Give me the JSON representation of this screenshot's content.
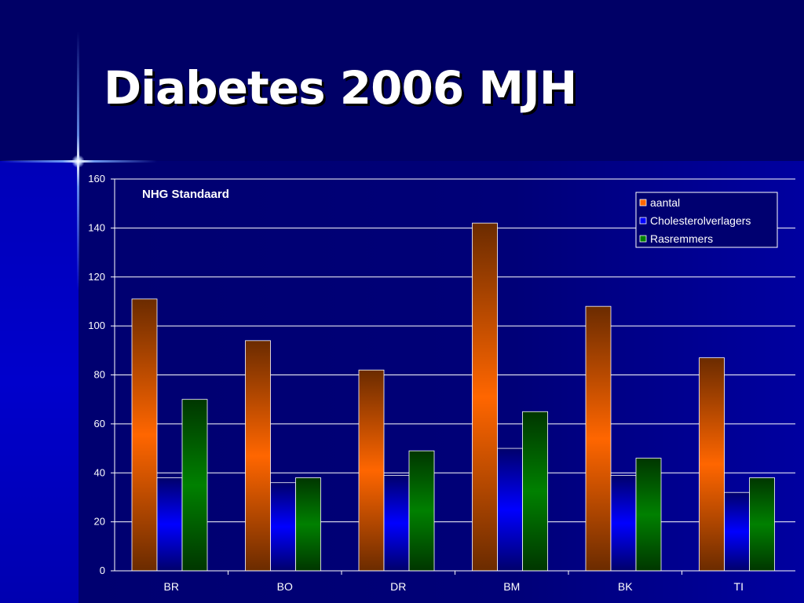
{
  "slide": {
    "title": "Diabetes 2006 MJH"
  },
  "chart_data": {
    "type": "bar",
    "title": "",
    "annotation": "NHG Standaard",
    "xlabel": "",
    "ylabel": "",
    "categories": [
      "BR",
      "BO",
      "DR",
      "BM",
      "BK",
      "TI"
    ],
    "series": [
      {
        "name": "aantal",
        "values": [
          111,
          94,
          82,
          142,
          108,
          87
        ],
        "color": "#ff6600"
      },
      {
        "name": "Cholesterolverlagers",
        "values": [
          38,
          36,
          39,
          50,
          39,
          32
        ],
        "color": "#0000ff"
      },
      {
        "name": "Rasremmers",
        "values": [
          70,
          38,
          49,
          65,
          46,
          38
        ],
        "color": "#008000"
      }
    ],
    "ylim": [
      0,
      160
    ],
    "yticks": [
      0,
      20,
      40,
      60,
      80,
      100,
      120,
      140,
      160
    ],
    "grid": true,
    "legend_position": "top-right"
  }
}
